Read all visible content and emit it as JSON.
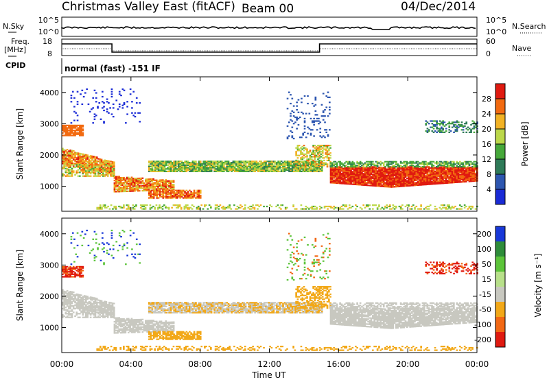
{
  "header": {
    "title": "Christmas Valley East (fitACF)",
    "beam": "Beam 00",
    "date": "04/Dec/2014"
  },
  "top_panels": {
    "nsky_label": "N.Sky",
    "nsearch_label": "N.Search",
    "nsky_ticks": [
      "10^5",
      "10^0"
    ],
    "nsearch_ticks": [
      "10^5",
      "10^0"
    ],
    "freq_label_1": "Freq.",
    "freq_label_2": "[MHz]",
    "freq_ticks": [
      "18",
      "8"
    ],
    "nave_label": "Nave",
    "nave_ticks": [
      "60",
      "0"
    ],
    "cpid_label": "CPID",
    "cpid_text": "normal (fast) -151 IF"
  },
  "chart_data": [
    {
      "type": "heatmap",
      "name": "power",
      "ylabel": "Slant Range [km]",
      "y_ticks": [
        1000,
        2000,
        3000,
        4000
      ],
      "ylim": [
        200,
        4500
      ],
      "x_ticks": [
        "00:00",
        "04:00",
        "08:00",
        "12:00",
        "16:00",
        "20:00",
        "00:00"
      ],
      "xlim_hours": [
        0,
        24
      ],
      "colorbar_label": "Power [dB]",
      "colorbar_ticks": [
        4,
        8,
        12,
        16,
        20,
        24,
        28
      ],
      "colorbar_colors": [
        "#1a2bd6",
        "#2d56b0",
        "#2e7a58",
        "#46a83a",
        "#bcd84a",
        "#f2b224",
        "#f26a10",
        "#e01a10"
      ]
    },
    {
      "type": "heatmap",
      "name": "velocity",
      "ylabel": "Slant Range [km]",
      "y_ticks": [
        1000,
        2000,
        3000,
        4000
      ],
      "ylim": [
        200,
        4500
      ],
      "x_ticks": [
        "00:00",
        "04:00",
        "08:00",
        "12:00",
        "16:00",
        "20:00",
        "00:00"
      ],
      "xlim_hours": [
        0,
        24
      ],
      "xlabel": "Time UT",
      "colorbar_label": "Velocity [m s⁻¹]",
      "colorbar_ticks": [
        200,
        100,
        50,
        15,
        -15,
        -50,
        -100,
        -200
      ],
      "colorbar_colors": [
        "#1838d8",
        "#2e8c3a",
        "#5cc43a",
        "#b8e08a",
        "#c8c8c0",
        "#f2a818",
        "#f26814",
        "#e01a10"
      ]
    }
  ]
}
